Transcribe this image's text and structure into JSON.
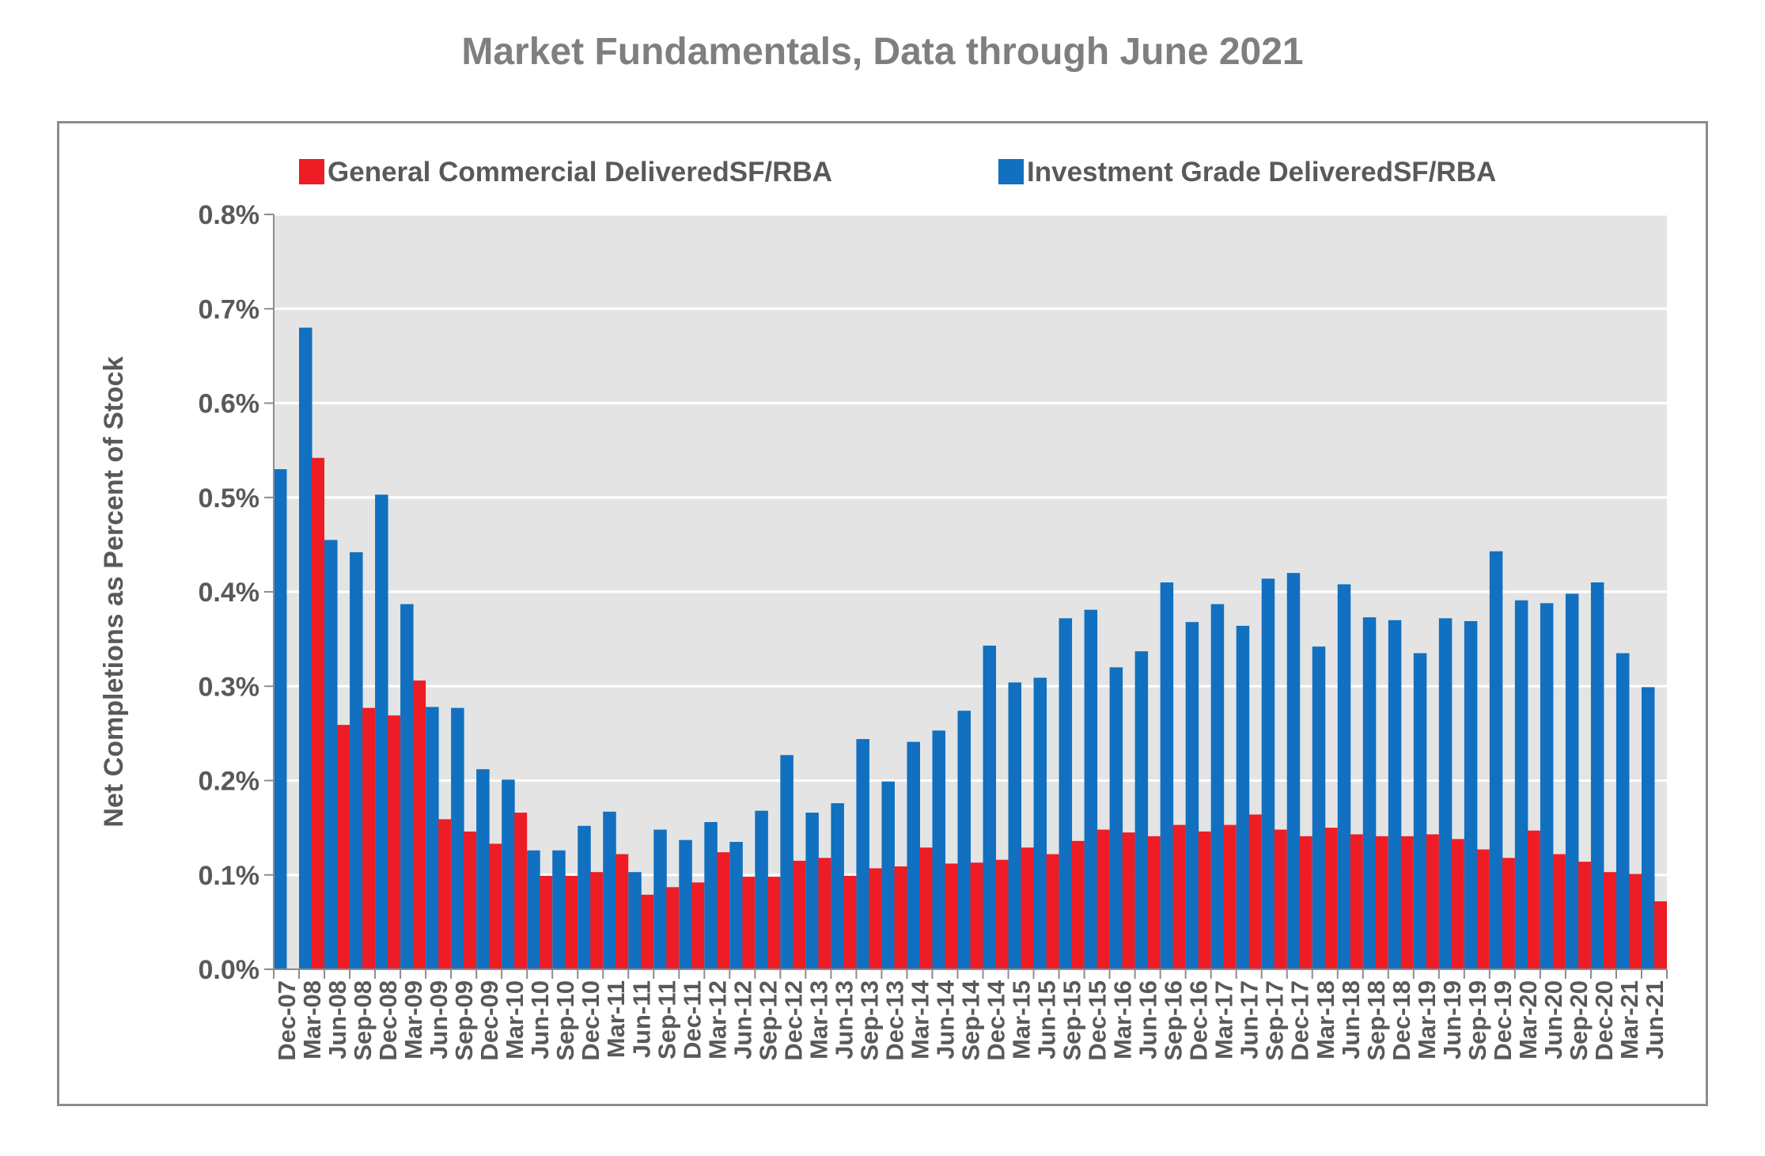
{
  "chart_data": {
    "type": "bar",
    "title": "Market Fundamentals, Data through June 2021",
    "xlabel": "",
    "ylabel": "Net Completions as Percent of Stock",
    "ylim": [
      0,
      0.8
    ],
    "y_ticks": [
      "0.0%",
      "0.1%",
      "0.2%",
      "0.3%",
      "0.4%",
      "0.5%",
      "0.6%",
      "0.7%",
      "0.8%"
    ],
    "grid": true,
    "legend_position": "top",
    "categories": [
      "Dec-07",
      "Mar-08",
      "Jun-08",
      "Sep-08",
      "Dec-08",
      "Mar-09",
      "Jun-09",
      "Sep-09",
      "Dec-09",
      "Mar-10",
      "Jun-10",
      "Sep-10",
      "Dec-10",
      "Mar-11",
      "Jun-11",
      "Sep-11",
      "Dec-11",
      "Mar-12",
      "Jun-12",
      "Sep-12",
      "Dec-12",
      "Mar-13",
      "Jun-13",
      "Sep-13",
      "Dec-13",
      "Mar-14",
      "Jun-14",
      "Sep-14",
      "Dec-14",
      "Mar-15",
      "Jun-15",
      "Sep-15",
      "Dec-15",
      "Mar-16",
      "Jun-16",
      "Sep-16",
      "Dec-16",
      "Mar-17",
      "Jun-17",
      "Sep-17",
      "Dec-17",
      "Mar-18",
      "Jun-18",
      "Sep-18",
      "Dec-18",
      "Mar-19",
      "Jun-19",
      "Sep-19",
      "Dec-19",
      "Mar-20",
      "Jun-20",
      "Sep-20",
      "Dec-20",
      "Mar-21",
      "Jun-21"
    ],
    "series": [
      {
        "name": "General Commercial DeliveredSF/RBA",
        "color": "#ee1c25",
        "values": [
          0.0,
          0.542,
          0.259,
          0.277,
          0.269,
          0.306,
          0.159,
          0.146,
          0.133,
          0.166,
          0.099,
          0.099,
          0.103,
          0.122,
          0.079,
          0.087,
          0.092,
          0.124,
          0.098,
          0.098,
          0.115,
          0.118,
          0.099,
          0.107,
          0.109,
          0.129,
          0.112,
          0.113,
          0.116,
          0.129,
          0.122,
          0.136,
          0.148,
          0.145,
          0.141,
          0.153,
          0.146,
          0.153,
          0.164,
          0.148,
          0.141,
          0.15,
          0.143,
          0.141,
          0.141,
          0.143,
          0.138,
          0.127,
          0.118,
          0.147,
          0.122,
          0.114,
          0.103,
          0.101,
          0.072
        ]
      },
      {
        "name": "Investment Grade DeliveredSF/RBA",
        "color": "#1170c0",
        "values": [
          0.53,
          0.68,
          0.455,
          0.442,
          0.503,
          0.387,
          0.278,
          0.277,
          0.212,
          0.201,
          0.126,
          0.126,
          0.152,
          0.167,
          0.103,
          0.148,
          0.137,
          0.156,
          0.135,
          0.168,
          0.227,
          0.166,
          0.176,
          0.244,
          0.199,
          0.241,
          0.253,
          0.274,
          0.343,
          0.304,
          0.309,
          0.372,
          0.381,
          0.32,
          0.337,
          0.41,
          0.368,
          0.387,
          0.364,
          0.414,
          0.42,
          0.342,
          0.408,
          0.373,
          0.37,
          0.335,
          0.372,
          0.369,
          0.443,
          0.391,
          0.388,
          0.398,
          0.41,
          0.335,
          0.299
        ]
      }
    ]
  }
}
